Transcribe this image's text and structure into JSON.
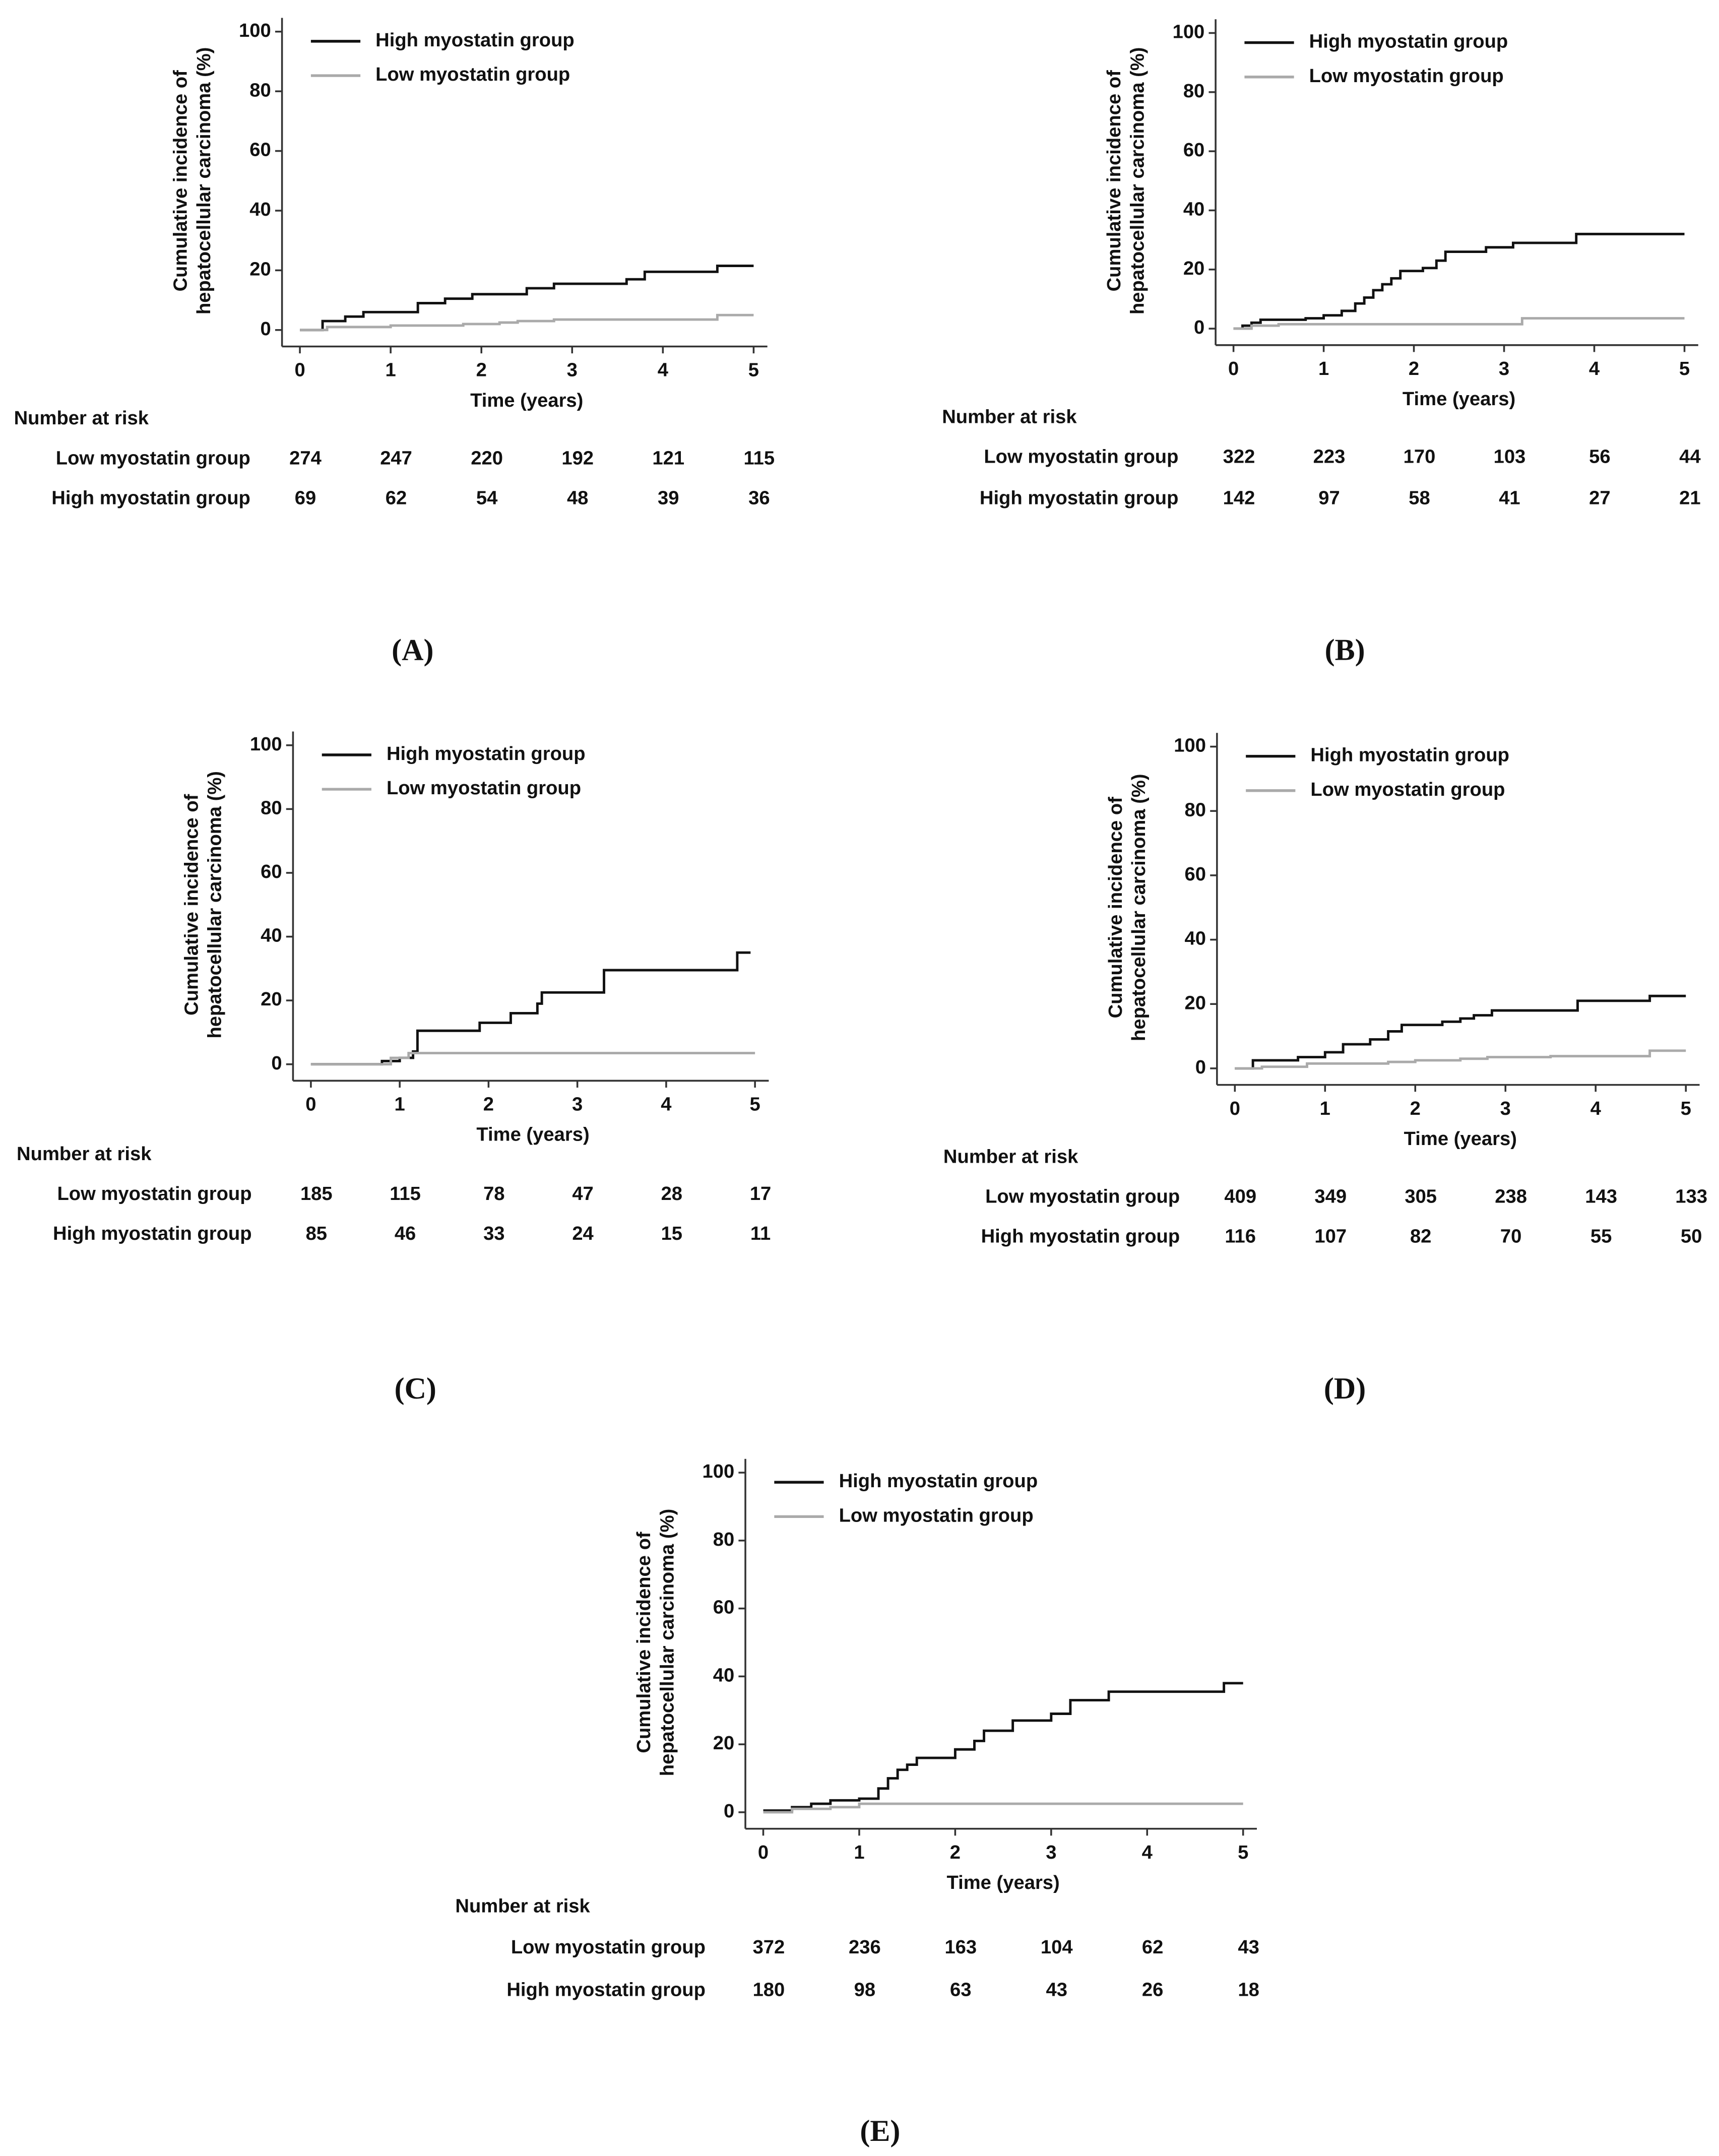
{
  "chart_data": [
    {
      "type": "line",
      "step": true,
      "panel_label": "(A)",
      "xlabel": "Time (years)",
      "ylabel": [
        "Cumulative incidence of",
        "hepatocellular carcinoma (%)"
      ],
      "xlim": [
        0,
        5
      ],
      "ylim": [
        0,
        100
      ],
      "xticks": [
        0,
        1,
        2,
        3,
        4,
        5
      ],
      "yticks": [
        0,
        20,
        40,
        60,
        80,
        100
      ],
      "series": [
        {
          "name": "High myostatin group",
          "color": "#111111",
          "x": [
            0,
            0.25,
            0.5,
            0.7,
            1.3,
            1.6,
            1.9,
            2.5,
            2.8,
            3.6,
            3.8,
            4.6,
            5
          ],
          "values": [
            0,
            3,
            4.5,
            6,
            9,
            10.5,
            12,
            14,
            15.5,
            17,
            19.5,
            21.5,
            21.5
          ]
        },
        {
          "name": "Low myostatin group",
          "color": "#aaaaaa",
          "x": [
            0,
            0.3,
            1,
            1.8,
            2.2,
            2.4,
            2.8,
            4.6,
            5
          ],
          "values": [
            0,
            1,
            1.5,
            2,
            2.5,
            3,
            3.5,
            5,
            5
          ]
        }
      ],
      "risk_table": {
        "title": "Number at risk",
        "rows": [
          {
            "name": "Low myostatin group",
            "values": [
              274,
              247,
              220,
              192,
              121,
              115
            ]
          },
          {
            "name": "High myostatin group",
            "values": [
              69,
              62,
              54,
              48,
              39,
              36
            ]
          }
        ]
      }
    },
    {
      "type": "line",
      "step": true,
      "panel_label": "(B)",
      "xlabel": "Time (years)",
      "ylabel": [
        "Cumulative incidence of",
        "hepatocellular carcinoma (%)"
      ],
      "xlim": [
        0,
        5
      ],
      "ylim": [
        0,
        100
      ],
      "xticks": [
        0,
        1,
        2,
        3,
        4,
        5
      ],
      "yticks": [
        0,
        20,
        40,
        60,
        80,
        100
      ],
      "series": [
        {
          "name": "High myostatin group",
          "color": "#111111",
          "x": [
            0,
            0.1,
            0.2,
            0.3,
            0.8,
            1.0,
            1.2,
            1.35,
            1.45,
            1.55,
            1.65,
            1.75,
            1.85,
            2.1,
            2.25,
            2.35,
            2.8,
            3.1,
            3.8,
            5
          ],
          "values": [
            0,
            1,
            2,
            3,
            3.5,
            4.5,
            6,
            8.5,
            10.5,
            13,
            15,
            17,
            19.5,
            20.5,
            23,
            26,
            27.5,
            29,
            32,
            32
          ]
        },
        {
          "name": "Low myostatin group",
          "color": "#aaaaaa",
          "x": [
            0,
            0.2,
            0.5,
            3.2,
            5
          ],
          "values": [
            0,
            1,
            1.5,
            3.5,
            3.5
          ]
        }
      ],
      "risk_table": {
        "title": "Number at risk",
        "rows": [
          {
            "name": "Low myostatin group",
            "values": [
              322,
              223,
              170,
              103,
              56,
              44
            ]
          },
          {
            "name": "High myostatin group",
            "values": [
              142,
              97,
              58,
              41,
              27,
              21
            ]
          }
        ]
      }
    },
    {
      "type": "line",
      "step": true,
      "panel_label": "(C)",
      "xlabel": "Time (years)",
      "ylabel": [
        "Cumulative incidence of",
        "hepatocellular carcinoma (%)"
      ],
      "xlim": [
        0,
        5
      ],
      "ylim": [
        0,
        100
      ],
      "xticks": [
        0,
        1,
        2,
        3,
        4,
        5
      ],
      "yticks": [
        0,
        20,
        40,
        60,
        80,
        100
      ],
      "series": [
        {
          "name": "High myostatin group",
          "color": "#111111",
          "x": [
            0,
            0.8,
            1.0,
            1.15,
            1.2,
            1.9,
            2.25,
            2.55,
            2.6,
            3.3,
            4.8,
            4.95
          ],
          "values": [
            0,
            1,
            2,
            4,
            10.5,
            13,
            16,
            19,
            22.5,
            29.5,
            35,
            35
          ]
        },
        {
          "name": "Low myostatin group",
          "color": "#aaaaaa",
          "x": [
            0,
            0.9,
            1.1,
            5
          ],
          "values": [
            0,
            2,
            3.5,
            3.5
          ]
        }
      ],
      "risk_table": {
        "title": "Number at risk",
        "rows": [
          {
            "name": "Low myostatin group",
            "values": [
              185,
              115,
              78,
              47,
              28,
              17
            ]
          },
          {
            "name": "High myostatin group",
            "values": [
              85,
              46,
              33,
              24,
              15,
              11
            ]
          }
        ]
      }
    },
    {
      "type": "line",
      "step": true,
      "panel_label": "(D)",
      "xlabel": "Time (years)",
      "ylabel": [
        "Cumulative incidence of",
        "hepatocellular carcinoma (%)"
      ],
      "xlim": [
        0,
        5
      ],
      "ylim": [
        0,
        100
      ],
      "xticks": [
        0,
        1,
        2,
        3,
        4,
        5
      ],
      "yticks": [
        0,
        20,
        40,
        60,
        80,
        100
      ],
      "series": [
        {
          "name": "High myostatin group",
          "color": "#111111",
          "x": [
            0,
            0.2,
            0.7,
            1.0,
            1.2,
            1.5,
            1.7,
            1.85,
            2.3,
            2.5,
            2.65,
            2.85,
            3.8,
            4.6,
            5
          ],
          "values": [
            0,
            2.5,
            3.5,
            5,
            7.5,
            9,
            11.5,
            13.5,
            14.5,
            15.5,
            16.5,
            18,
            21,
            22.5,
            22.5
          ]
        },
        {
          "name": "Low myostatin group",
          "color": "#aaaaaa",
          "x": [
            0,
            0.3,
            0.8,
            1.7,
            2.0,
            2.5,
            2.8,
            3.5,
            4.6,
            5
          ],
          "values": [
            0,
            0.5,
            1.5,
            2,
            2.5,
            3,
            3.5,
            3.8,
            5.5,
            5.5
          ]
        }
      ],
      "risk_table": {
        "title": "Number at risk",
        "rows": [
          {
            "name": "Low myostatin group",
            "values": [
              409,
              349,
              305,
              238,
              143,
              133
            ]
          },
          {
            "name": "High myostatin group",
            "values": [
              116,
              107,
              82,
              70,
              55,
              50
            ]
          }
        ]
      }
    },
    {
      "type": "line",
      "step": true,
      "panel_label": "(E)",
      "xlabel": "Time (years)",
      "ylabel": [
        "Cumulative incidence of",
        "hepatocellular carcinoma (%)"
      ],
      "xlim": [
        0,
        5
      ],
      "ylim": [
        0,
        100
      ],
      "xticks": [
        0,
        1,
        2,
        3,
        4,
        5
      ],
      "yticks": [
        0,
        20,
        40,
        60,
        80,
        100
      ],
      "series": [
        {
          "name": "High myostatin group",
          "color": "#111111",
          "x": [
            0,
            0.3,
            0.5,
            0.7,
            1.0,
            1.2,
            1.3,
            1.4,
            1.5,
            1.6,
            2.0,
            2.2,
            2.3,
            2.6,
            3.0,
            3.2,
            3.6,
            4.8,
            5
          ],
          "values": [
            0.5,
            1.5,
            2.5,
            3.5,
            4,
            7,
            10,
            12.5,
            14,
            16,
            18.5,
            21,
            24,
            27,
            29,
            33,
            35.5,
            38,
            38
          ]
        },
        {
          "name": "Low myostatin group",
          "color": "#aaaaaa",
          "x": [
            0,
            0.3,
            0.7,
            1.0,
            5
          ],
          "values": [
            0,
            1,
            1.5,
            2.5,
            2.5
          ]
        }
      ],
      "risk_table": {
        "title": "Number at risk",
        "rows": [
          {
            "name": "Low myostatin group",
            "values": [
              372,
              236,
              163,
              104,
              62,
              43
            ]
          },
          {
            "name": "High myostatin group",
            "values": [
              180,
              98,
              63,
              43,
              26,
              18
            ]
          }
        ]
      }
    }
  ]
}
